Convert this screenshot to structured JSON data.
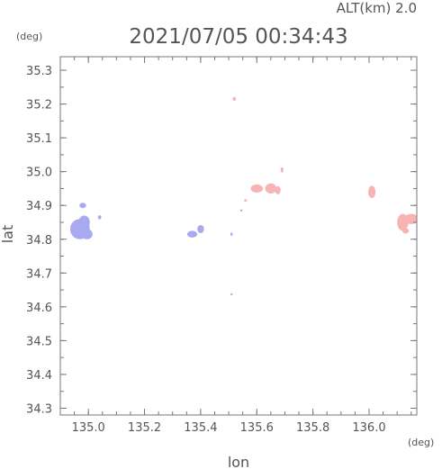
{
  "header": {
    "altitude_label": "ALT(km) 2.0",
    "datetime": "2021/07/05 00:34:43",
    "y_unit": "(deg)",
    "x_unit": "(deg)"
  },
  "colors": {
    "frame": "#777777",
    "text": "#555555",
    "approaching": "#a9a9f2",
    "receding": "#f7b4b4"
  },
  "chart_data": {
    "type": "scatter",
    "xlabel": "lon",
    "ylabel": "lat",
    "xlim": [
      134.9,
      136.17
    ],
    "ylim": [
      34.28,
      35.34
    ],
    "xticks": [
      "135.0",
      "135.2",
      "135.4",
      "135.6",
      "135.8",
      "136.0"
    ],
    "yticks": [
      "34.3",
      "34.4",
      "34.5",
      "34.6",
      "34.7",
      "34.8",
      "34.9",
      "35.0",
      "35.1",
      "35.2",
      "35.3"
    ],
    "grid": false,
    "series": [
      {
        "color": "blue",
        "blobs": [
          {
            "lon": 134.97,
            "lat": 34.83,
            "rlon": 0.035,
            "rlat": 0.03
          },
          {
            "lon": 134.985,
            "lat": 34.85,
            "rlon": 0.02,
            "rlat": 0.02
          },
          {
            "lon": 134.995,
            "lat": 34.815,
            "rlon": 0.02,
            "rlat": 0.015
          },
          {
            "lon": 134.98,
            "lat": 34.9,
            "rlon": 0.012,
            "rlat": 0.008
          },
          {
            "lon": 135.04,
            "lat": 34.865,
            "rlon": 0.006,
            "rlat": 0.006
          },
          {
            "lon": 135.37,
            "lat": 34.815,
            "rlon": 0.018,
            "rlat": 0.01
          },
          {
            "lon": 135.4,
            "lat": 34.83,
            "rlon": 0.012,
            "rlat": 0.012
          },
          {
            "lon": 135.51,
            "lat": 34.815,
            "rlon": 0.003,
            "rlat": 0.005
          },
          {
            "lon": 135.51,
            "lat": 34.637,
            "rlon": 0.003,
            "rlat": 0.003
          },
          {
            "lon": 135.545,
            "lat": 34.885,
            "rlon": 0.003,
            "rlat": 0.003
          }
        ]
      },
      {
        "color": "red",
        "blobs": [
          {
            "lon": 135.52,
            "lat": 35.215,
            "rlon": 0.006,
            "rlat": 0.006
          },
          {
            "lon": 135.6,
            "lat": 34.95,
            "rlon": 0.022,
            "rlat": 0.012
          },
          {
            "lon": 135.65,
            "lat": 34.95,
            "rlon": 0.02,
            "rlat": 0.015
          },
          {
            "lon": 135.675,
            "lat": 34.945,
            "rlon": 0.01,
            "rlat": 0.012
          },
          {
            "lon": 135.69,
            "lat": 35.005,
            "rlon": 0.005,
            "rlat": 0.008
          },
          {
            "lon": 135.56,
            "lat": 34.915,
            "rlon": 0.005,
            "rlat": 0.004
          },
          {
            "lon": 136.01,
            "lat": 34.94,
            "rlon": 0.013,
            "rlat": 0.018
          },
          {
            "lon": 136.12,
            "lat": 34.85,
            "rlon": 0.02,
            "rlat": 0.025
          },
          {
            "lon": 136.15,
            "lat": 34.86,
            "rlon": 0.025,
            "rlat": 0.015
          },
          {
            "lon": 136.13,
            "lat": 34.825,
            "rlon": 0.012,
            "rlat": 0.008
          }
        ]
      }
    ]
  }
}
